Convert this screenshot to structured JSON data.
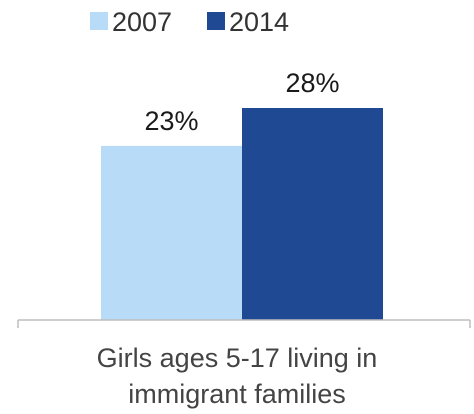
{
  "chart_data": {
    "type": "bar",
    "categories": [
      "Girls ages 5-17 living in\nimmigrant families"
    ],
    "series": [
      {
        "name": "2007",
        "values": [
          23
        ],
        "color": "#b8dbf7",
        "label": "23%"
      },
      {
        "name": "2014",
        "values": [
          28
        ],
        "color": "#1f4a93",
        "label": "28%"
      }
    ],
    "ylim": [
      0,
      35
    ],
    "grid": false,
    "legend_position": "top-left"
  }
}
